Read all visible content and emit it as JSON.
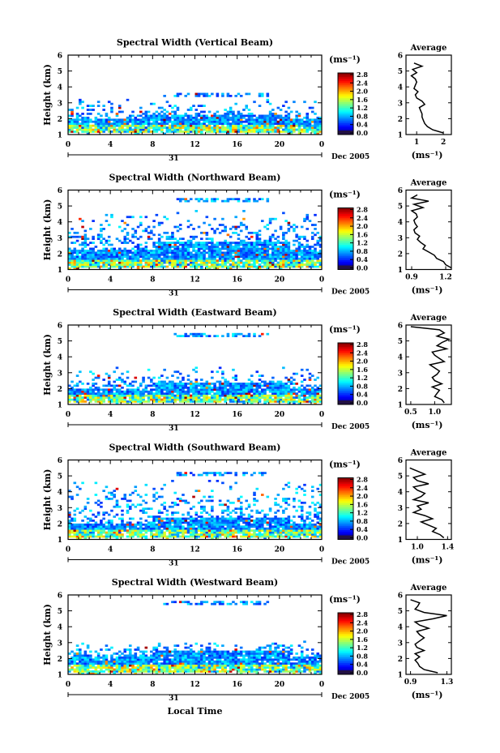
{
  "figure": {
    "date_label": "Dec 2005",
    "day_label": "31",
    "x_axis_label": "Local Time",
    "colorbar_unit": "(ms⁻¹)",
    "colorbar_ticks": [
      "2.8",
      "2.4",
      "2.0",
      "1.6",
      "1.2",
      "0.8",
      "0.4",
      "0.0"
    ],
    "colorbar_range": [
      0.0,
      2.8
    ],
    "average_title": "Average",
    "average_unit": "(ms⁻¹)"
  },
  "chart_data": [
    {
      "type": "heatmap",
      "title": "Spectral Width (Vertical Beam)",
      "ylabel": "Height (km)",
      "xlabel": "",
      "xlim": [
        0,
        24
      ],
      "ylim": [
        1,
        6
      ],
      "xticks": [
        "0",
        "4",
        "8",
        "12",
        "16",
        "20",
        "0"
      ],
      "yticks": [
        "1",
        "2",
        "3",
        "4",
        "5",
        "6"
      ],
      "avg_profile": {
        "xlim": [
          0.6,
          2.3
        ],
        "xticks": [
          "1",
          "2"
        ],
        "xtick_values": [
          1,
          2
        ],
        "height": [
          1.1,
          1.3,
          1.5,
          1.7,
          1.9,
          2.1,
          2.3,
          2.5,
          2.7,
          2.9,
          3.1,
          3.3,
          3.5,
          3.7,
          3.9,
          4.1,
          4.3,
          4.5,
          4.7,
          4.9,
          5.1,
          5.3,
          5.5
        ],
        "values": [
          2.0,
          1.6,
          1.4,
          1.3,
          1.25,
          1.2,
          1.2,
          1.15,
          1.1,
          1.3,
          1.2,
          1.0,
          0.95,
          1.05,
          0.9,
          0.95,
          1.0,
          0.95,
          0.8,
          1.0,
          0.85,
          1.2,
          0.9
        ]
      }
    },
    {
      "type": "heatmap",
      "title": "Spectral Width (Northward Beam)",
      "ylabel": "Height (km)",
      "xlabel": "",
      "xlim": [
        0,
        24
      ],
      "ylim": [
        1,
        6
      ],
      "xticks": [
        "0",
        "4",
        "8",
        "12",
        "16",
        "20",
        "0"
      ],
      "yticks": [
        "1",
        "2",
        "3",
        "4",
        "5",
        "6"
      ],
      "avg_profile": {
        "xlim": [
          0.85,
          1.25
        ],
        "xticks": [
          "0.9",
          "1.2"
        ],
        "xtick_values": [
          0.9,
          1.2
        ],
        "height": [
          1.1,
          1.3,
          1.5,
          1.7,
          1.9,
          2.1,
          2.3,
          2.5,
          2.7,
          2.9,
          3.1,
          3.3,
          3.5,
          3.7,
          3.9,
          4.1,
          4.3,
          4.5,
          4.7,
          4.9,
          5.1,
          5.3,
          5.5,
          5.7
        ],
        "values": [
          1.25,
          1.2,
          1.18,
          1.12,
          1.1,
          1.05,
          1.0,
          1.02,
          0.98,
          0.95,
          0.97,
          0.93,
          0.92,
          0.95,
          0.93,
          0.92,
          0.95,
          0.94,
          0.9,
          1.0,
          0.92,
          1.05,
          0.9,
          0.95
        ]
      }
    },
    {
      "type": "heatmap",
      "title": "Spectral Width (Eastward Beam)",
      "ylabel": "Height (km)",
      "xlabel": "",
      "xlim": [
        0,
        24
      ],
      "ylim": [
        1,
        6
      ],
      "xticks": [
        "0",
        "4",
        "8",
        "12",
        "16",
        "20",
        "0"
      ],
      "yticks": [
        "1",
        "2",
        "3",
        "4",
        "5",
        "6"
      ],
      "avg_profile": {
        "xlim": [
          0.4,
          1.35
        ],
        "xticks": [
          "0.5",
          "1.0"
        ],
        "xtick_values": [
          0.5,
          1.0
        ],
        "height": [
          1.1,
          1.3,
          1.5,
          1.7,
          1.9,
          2.1,
          2.3,
          2.5,
          2.7,
          2.9,
          3.1,
          3.3,
          3.5,
          3.7,
          3.9,
          4.1,
          4.3,
          4.5,
          4.7,
          4.9,
          5.1,
          5.3,
          5.5,
          5.7,
          5.9
        ],
        "values": [
          1.2,
          1.15,
          1.0,
          1.05,
          1.1,
          0.95,
          1.15,
          1.0,
          0.95,
          1.05,
          1.1,
          1.0,
          0.9,
          1.2,
          1.1,
          1.0,
          0.95,
          1.25,
          1.05,
          1.15,
          1.3,
          1.05,
          1.2,
          1.1,
          0.5
        ]
      }
    },
    {
      "type": "heatmap",
      "title": "Spectral Width (Southward Beam)",
      "ylabel": "Height (km)",
      "xlabel": "",
      "xlim": [
        0,
        24
      ],
      "ylim": [
        1,
        6
      ],
      "xticks": [
        "0",
        "4",
        "8",
        "12",
        "16",
        "20",
        "0"
      ],
      "yticks": [
        "1",
        "2",
        "3",
        "4",
        "5",
        "6"
      ],
      "avg_profile": {
        "xlim": [
          0.85,
          1.45
        ],
        "xticks": [
          "1.0",
          "1.4"
        ],
        "xtick_values": [
          1.0,
          1.4
        ],
        "height": [
          1.1,
          1.3,
          1.5,
          1.7,
          1.9,
          2.1,
          2.3,
          2.5,
          2.7,
          2.9,
          3.1,
          3.3,
          3.5,
          3.7,
          3.9,
          4.1,
          4.3,
          4.5,
          4.7,
          4.9,
          5.1,
          5.3,
          5.5
        ],
        "values": [
          1.35,
          1.3,
          1.2,
          1.25,
          1.15,
          1.05,
          1.2,
          1.1,
          0.95,
          1.05,
          1.0,
          1.15,
          0.95,
          1.05,
          1.1,
          1.0,
          0.95,
          1.15,
          1.0,
          0.95,
          1.1,
          1.0,
          0.9
        ]
      }
    },
    {
      "type": "heatmap",
      "title": "Spectral Width (Westward Beam)",
      "ylabel": "Height (km)",
      "xlabel": "Local Time",
      "xlim": [
        0,
        24
      ],
      "ylim": [
        1,
        6
      ],
      "xticks": [
        "0",
        "4",
        "8",
        "12",
        "16",
        "20",
        "0"
      ],
      "yticks": [
        "1",
        "2",
        "3",
        "4",
        "5",
        "6"
      ],
      "avg_profile": {
        "xlim": [
          0.85,
          1.35
        ],
        "xticks": [
          "0.9",
          "1.3"
        ],
        "xtick_values": [
          0.9,
          1.3
        ],
        "height": [
          1.1,
          1.3,
          1.5,
          1.7,
          1.9,
          2.1,
          2.3,
          2.5,
          2.7,
          2.9,
          3.1,
          3.3,
          3.5,
          3.7,
          3.9,
          4.1,
          4.3,
          4.5,
          4.7,
          4.9,
          5.1,
          5.3,
          5.5,
          5.7
        ],
        "values": [
          1.2,
          1.05,
          1.0,
          0.98,
          0.95,
          1.0,
          0.95,
          1.05,
          0.97,
          0.95,
          1.0,
          1.05,
          1.0,
          0.97,
          1.1,
          1.0,
          0.95,
          1.15,
          1.3,
          1.05,
          0.95,
          0.98,
          1.0,
          0.9
        ]
      }
    }
  ]
}
